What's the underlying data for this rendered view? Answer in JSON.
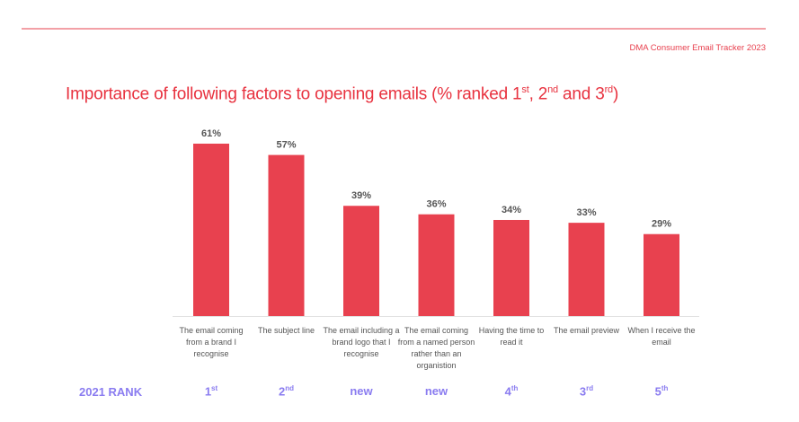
{
  "source": "DMA Consumer Email Tracker 2023",
  "chart_data": {
    "type": "bar",
    "title_parts": [
      {
        "text": "Importance of following factors to opening emails (% ranked 1"
      },
      {
        "text": "st",
        "sup": true
      },
      {
        "text": ", 2"
      },
      {
        "text": "nd",
        "sup": true
      },
      {
        "text": " and 3"
      },
      {
        "text": "rd",
        "sup": true
      },
      {
        "text": ")"
      }
    ],
    "categories": [
      "The email coming from a brand I recognise",
      "The subject line",
      "The email including a brand logo that I recognise",
      "The email coming from a named person rather than an organistion",
      "Having the time to read it",
      "The email preview",
      "When I receive the email"
    ],
    "values": [
      61,
      57,
      39,
      36,
      34,
      33,
      29
    ],
    "data_labels": [
      "61%",
      "57%",
      "39%",
      "36%",
      "34%",
      "33%",
      "29%"
    ],
    "unit": "%",
    "ylim": [
      0,
      61
    ],
    "grid": false,
    "bar_color": "#e8414f",
    "rank_header": "2021 RANK",
    "ranks": [
      {
        "main": "1",
        "suffix": "st"
      },
      {
        "main": "2",
        "suffix": "nd"
      },
      {
        "main": "new",
        "suffix": ""
      },
      {
        "main": "new",
        "suffix": ""
      },
      {
        "main": "4",
        "suffix": "th"
      },
      {
        "main": "3",
        "suffix": "rd"
      },
      {
        "main": "5",
        "suffix": "th"
      }
    ],
    "rank_color": "#8a7cf0"
  }
}
